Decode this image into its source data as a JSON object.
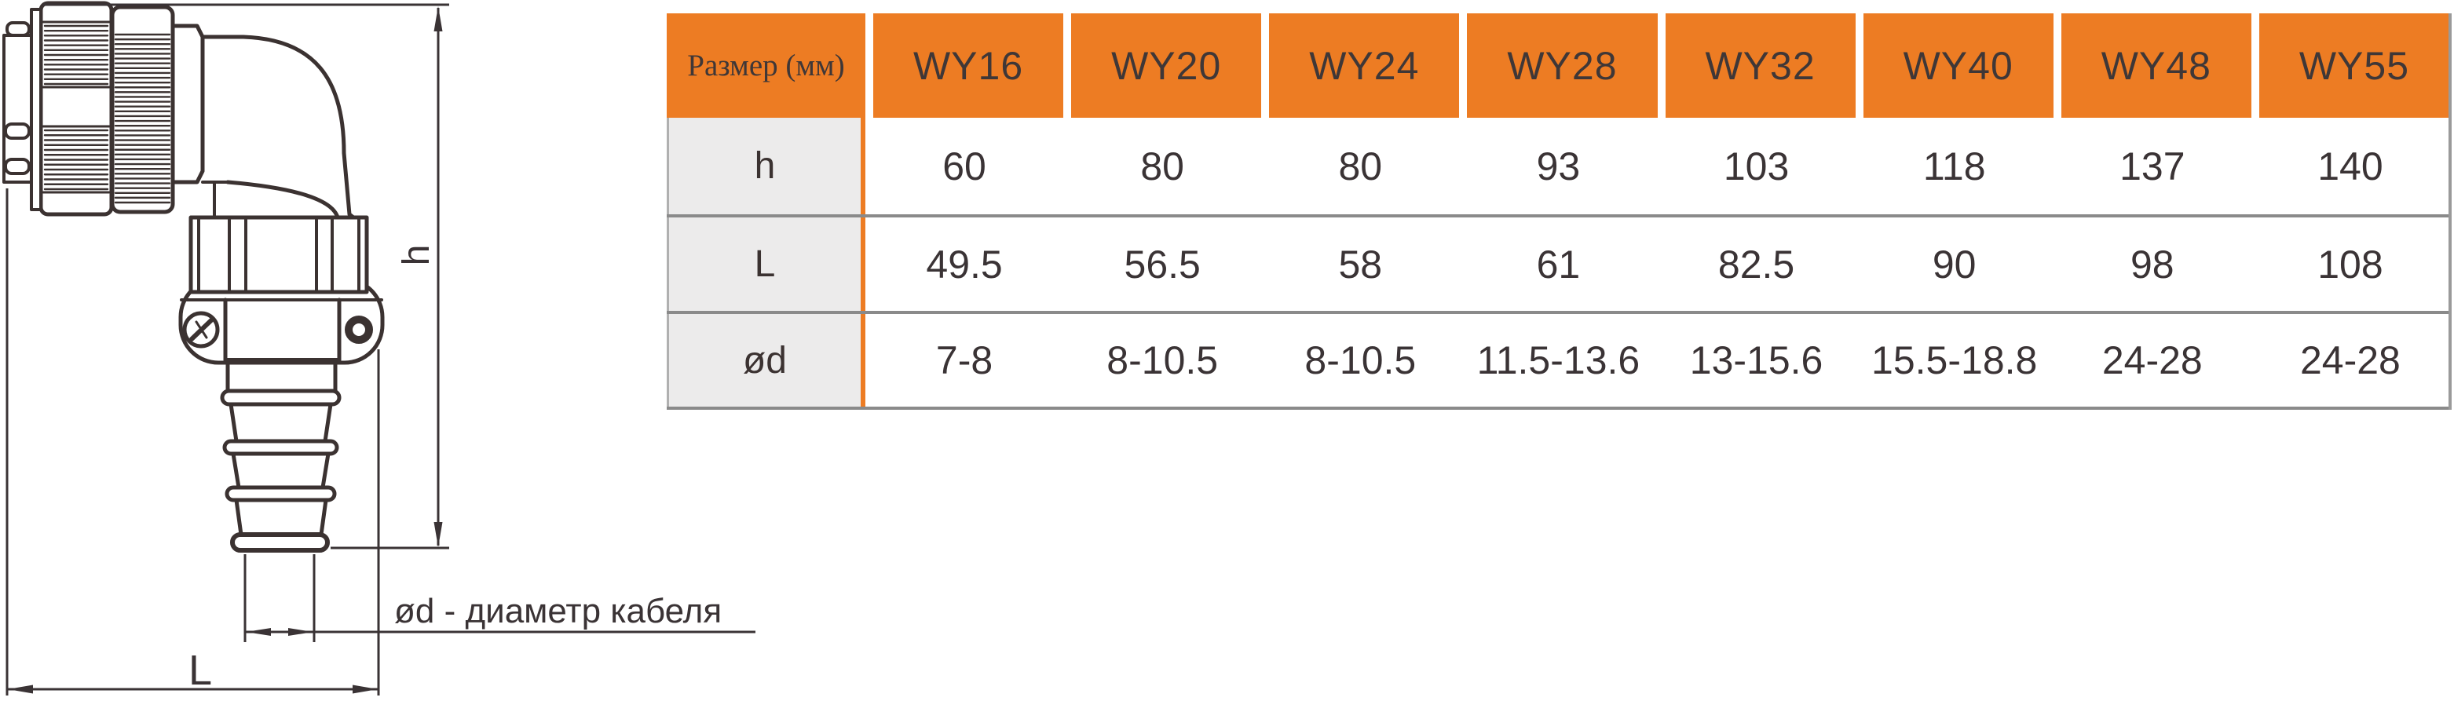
{
  "diagram": {
    "labels": {
      "h": "h",
      "L": "L",
      "od_note": "ød - диаметр кабеля"
    }
  },
  "table": {
    "size_header": "Размер (мм)",
    "columns": [
      "WY16",
      "WY20",
      "WY24",
      "WY28",
      "WY32",
      "WY40",
      "WY48",
      "WY55"
    ],
    "rows": [
      {
        "label": "h",
        "values": [
          "60",
          "80",
          "80",
          "93",
          "103",
          "118",
          "137",
          "140"
        ]
      },
      {
        "label": "L",
        "values": [
          "49.5",
          "56.5",
          "58",
          "61",
          "82.5",
          "90",
          "98",
          "108"
        ]
      },
      {
        "label": "ød",
        "values": [
          "7-8",
          "8-10.5",
          "8-10.5",
          "11.5-13.6",
          "13-15.6",
          "15.5-18.8",
          "24-28",
          "24-28"
        ]
      }
    ]
  },
  "colors": {
    "accent_orange": "#ED7C23",
    "grid_line": "#8A8A8A",
    "label_cell_bg": "#ECEBEB",
    "ink": "#3B3231"
  },
  "chart_data": {
    "type": "table",
    "title": "Размер (мм)",
    "columns": [
      "WY16",
      "WY20",
      "WY24",
      "WY28",
      "WY32",
      "WY40",
      "WY48",
      "WY55"
    ],
    "rows": [
      {
        "label": "h",
        "values": [
          60,
          80,
          80,
          93,
          103,
          118,
          137,
          140
        ]
      },
      {
        "label": "L",
        "values": [
          49.5,
          56.5,
          58,
          61,
          82.5,
          90,
          98,
          108
        ]
      },
      {
        "label": "ød",
        "values": [
          "7-8",
          "8-10.5",
          "8-10.5",
          "11.5-13.6",
          "13-15.6",
          "15.5-18.8",
          "24-28",
          "24-28"
        ]
      }
    ]
  }
}
